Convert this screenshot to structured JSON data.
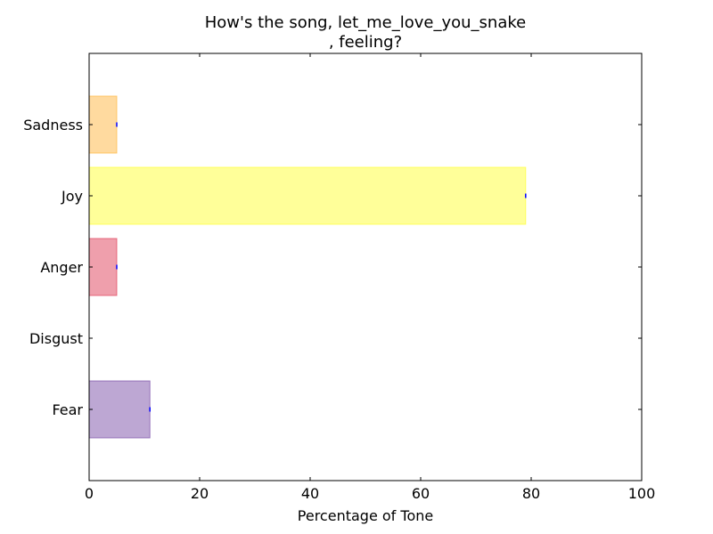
{
  "chart_data": {
    "type": "bar",
    "orientation": "horizontal",
    "title_lines": [
      "How's the song, let_me_love_you_snake",
      ", feeling?"
    ],
    "xlabel": "Percentage of Tone",
    "ylabel": "",
    "xlim": [
      0,
      100
    ],
    "xticks": [
      "0",
      "20",
      "40",
      "60",
      "80",
      "100"
    ],
    "grid": false,
    "categories": [
      "Fear",
      "Disgust",
      "Anger",
      "Joy",
      "Sadness"
    ],
    "values": [
      11,
      0,
      5,
      79,
      5
    ],
    "colors": [
      "#7b4fa8",
      "#3a7d2c",
      "#e0405a",
      "#ffff33",
      "#ffb640"
    ],
    "error_bar_color": "#0000ff"
  }
}
